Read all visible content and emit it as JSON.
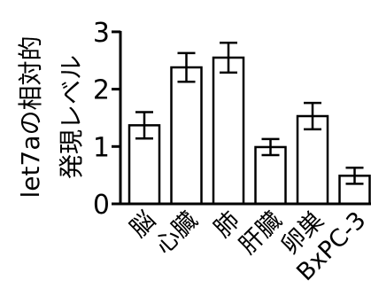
{
  "chart_data": {
    "type": "bar",
    "title": "",
    "ylabel_lines": [
      "let7aの相対的",
      "発現レベル"
    ],
    "xlabel": "",
    "ylim": [
      0,
      3
    ],
    "yticks": [
      "0",
      "1",
      "2",
      "3"
    ],
    "categories": [
      "脳",
      "心臓",
      "肺",
      "肝臓",
      "卵巣",
      "BxPC-3"
    ],
    "values": [
      1.37,
      2.38,
      2.55,
      0.99,
      1.53,
      0.49
    ],
    "errors": [
      0.23,
      0.25,
      0.26,
      0.14,
      0.23,
      0.14
    ],
    "bar_fill": "#ffffff",
    "bar_stroke": "#000000",
    "grid": false,
    "legend": "none"
  }
}
